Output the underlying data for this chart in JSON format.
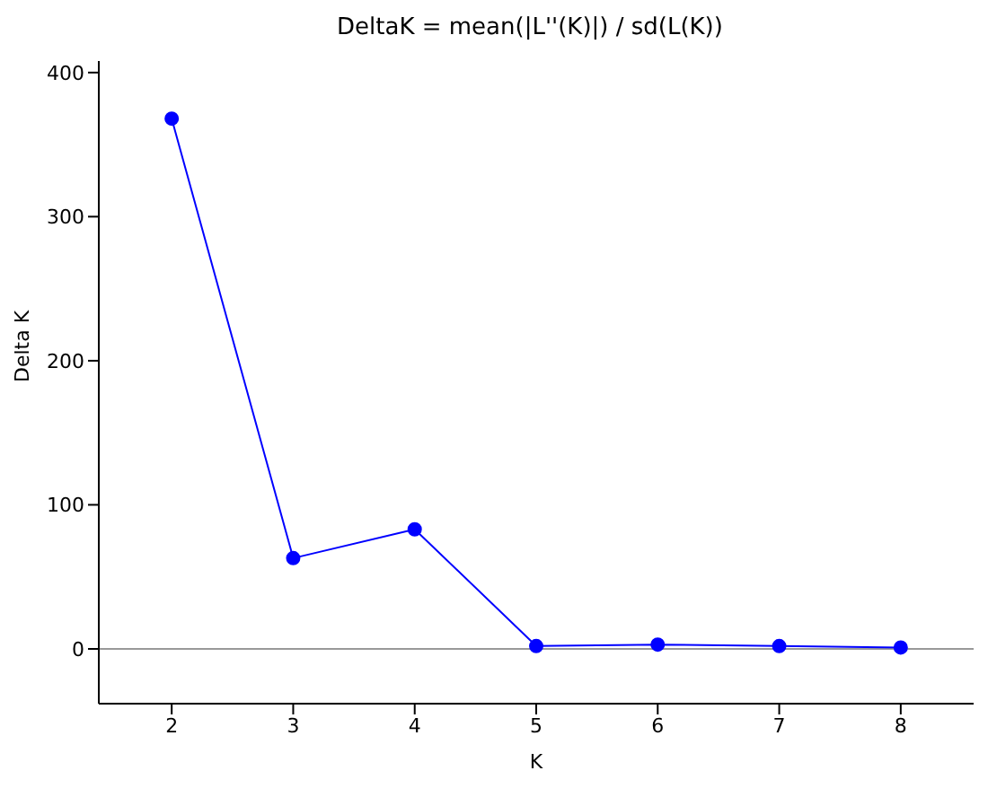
{
  "chart_data": {
    "type": "line",
    "title": "DeltaK = mean(|L''(K)|) / sd(L(K))",
    "xlabel": "K",
    "ylabel": "Delta K",
    "x": [
      2,
      3,
      4,
      5,
      6,
      7,
      8
    ],
    "series": [
      {
        "color": "#0000ff",
        "values": [
          368,
          63,
          83,
          2,
          3,
          2,
          1
        ]
      }
    ],
    "xlim": [
      1.4,
      8.6
    ],
    "xticks": [
      2,
      3,
      4,
      5,
      6,
      7,
      8
    ],
    "ylim": [
      -38,
      408
    ],
    "yticks": [
      0,
      100,
      200,
      300,
      400
    ],
    "ref_lines": [
      {
        "axis": "y",
        "value": 0,
        "color": "#999999"
      }
    ],
    "marker": "circle",
    "line_style": "solid",
    "grid": false,
    "legend": false
  }
}
